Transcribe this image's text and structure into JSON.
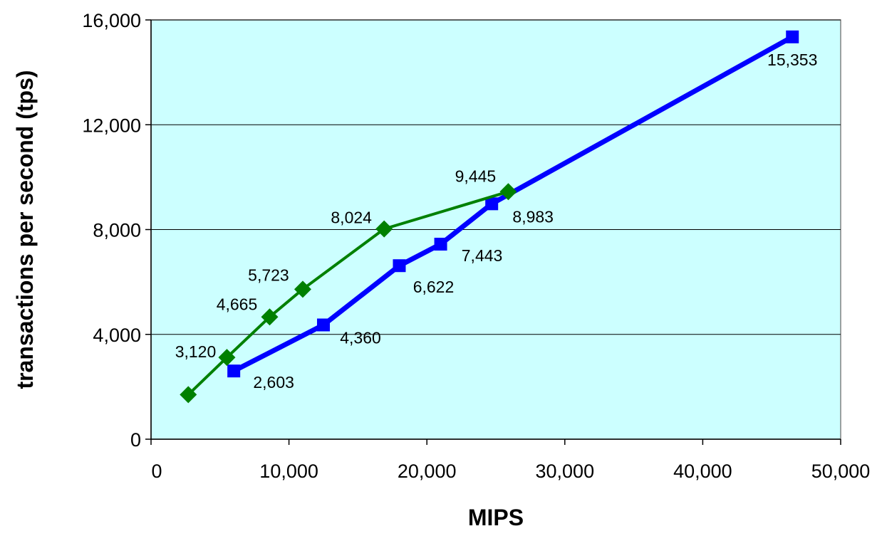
{
  "chart_data": {
    "type": "scatter",
    "xlabel": "MIPS",
    "ylabel": "transactions per second (tps)",
    "xlim": [
      0,
      50000
    ],
    "ylim": [
      0,
      16000
    ],
    "x_ticks": [
      "0",
      "10,000",
      "20,000",
      "30,000",
      "40,000",
      "50,000"
    ],
    "y_ticks": [
      "0",
      "4,000",
      "8,000",
      "12,000",
      "16,000"
    ],
    "grid": "horizontal",
    "plot_background": "#CCFFFF",
    "series": [
      {
        "color": "#0000FF",
        "marker": "square",
        "points": [
          {
            "x": 6000,
            "y": 2603,
            "label": "2,603"
          },
          {
            "x": 12500,
            "y": 4360,
            "label": "4,360"
          },
          {
            "x": 18000,
            "y": 6622,
            "label": "6,622"
          },
          {
            "x": 21000,
            "y": 7443,
            "label": "7,443"
          },
          {
            "x": 24700,
            "y": 8983,
            "label": "8,983"
          },
          {
            "x": 46500,
            "y": 15353,
            "label": "15,353"
          }
        ]
      },
      {
        "color": "#008000",
        "marker": "diamond",
        "points": [
          {
            "x": 2700,
            "y": 1700,
            "label": ""
          },
          {
            "x": 5500,
            "y": 3120,
            "label": "3,120"
          },
          {
            "x": 8600,
            "y": 4665,
            "label": "4,665"
          },
          {
            "x": 11000,
            "y": 5723,
            "label": "5,723"
          },
          {
            "x": 16900,
            "y": 8024,
            "label": "8,024"
          },
          {
            "x": 25900,
            "y": 9445,
            "label": "9,445"
          }
        ]
      }
    ]
  }
}
